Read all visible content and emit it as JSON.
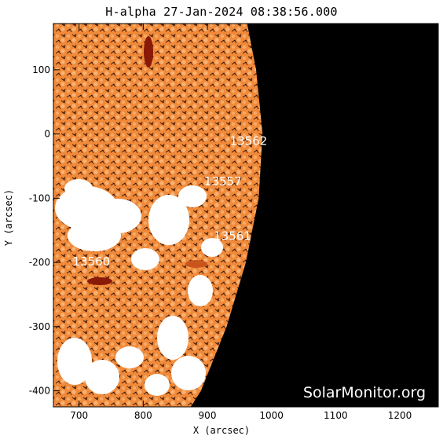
{
  "title": "H-alpha 27-Jan-2024 08:38:56.000",
  "xlabel": "X (arcsec)",
  "ylabel": "Y (arcsec)",
  "watermark": "SolarMonitor.org",
  "colors": {
    "disk_base": "#f08a3a",
    "disk_light": "#f6ab64",
    "disk_dark": "#c9551c",
    "plage": "#ffffff",
    "filament": "#8a1a08",
    "space": "#000000"
  },
  "x_ticks": [
    "700",
    "800",
    "900",
    "1000",
    "1100",
    "1200"
  ],
  "y_ticks": [
    "100",
    "0",
    "-100",
    "-200",
    "-300",
    "-400"
  ],
  "chart_data": {
    "type": "heatmap",
    "xlabel": "X (arcsec)",
    "ylabel": "Y (arcsec)",
    "xlim": [
      660,
      1260
    ],
    "ylim": [
      -425,
      172
    ],
    "x_tick_values": [
      700,
      800,
      900,
      1000,
      1100,
      1200
    ],
    "y_tick_values": [
      100,
      0,
      -100,
      -200,
      -300,
      -400
    ],
    "limb_x_at_y": [
      [
        172,
        962
      ],
      [
        100,
        976
      ],
      [
        0,
        986
      ],
      [
        -100,
        980
      ],
      [
        -200,
        960
      ],
      [
        -300,
        930
      ],
      [
        -400,
        890
      ],
      [
        -425,
        874
      ]
    ],
    "regions": [
      {
        "label": "13562",
        "x": 935,
        "y": -17
      },
      {
        "label": "13557",
        "x": 895,
        "y": -80
      },
      {
        "label": "13561",
        "x": 910,
        "y": -165
      },
      {
        "label": "13560",
        "x": 690,
        "y": -205
      }
    ]
  }
}
